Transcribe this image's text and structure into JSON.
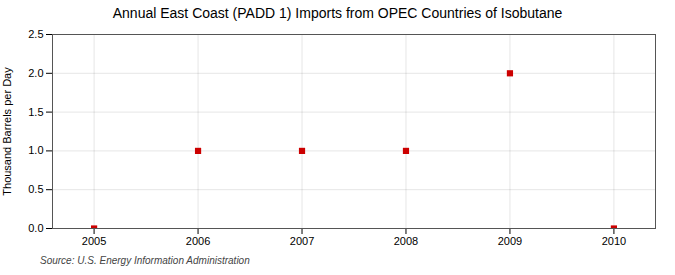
{
  "chart_data": {
    "type": "scatter",
    "title": "Annual East Coast (PADD 1) Imports from OPEC Countries of Isobutane",
    "ylabel": "Thousand Barrels per Day",
    "annotations": [
      "Source: U.S. Energy Information Administration"
    ],
    "x": [
      2005,
      2006,
      2007,
      2008,
      2009,
      2010
    ],
    "values": [
      0,
      1,
      1,
      1,
      2,
      0
    ],
    "color": "#cc0000",
    "marker": "square",
    "xlim": [
      2004.6,
      2010.4
    ],
    "xticks": [
      2005,
      2006,
      2007,
      2008,
      2009,
      2010
    ],
    "ylim": [
      0,
      2.5
    ],
    "yticks": [
      {
        "value": 0,
        "label": "0.0"
      },
      0.5,
      {
        "value": 1,
        "label": "1.0"
      },
      1.5,
      {
        "value": 2,
        "label": "2.0"
      },
      2.5
    ],
    "grid": true
  }
}
